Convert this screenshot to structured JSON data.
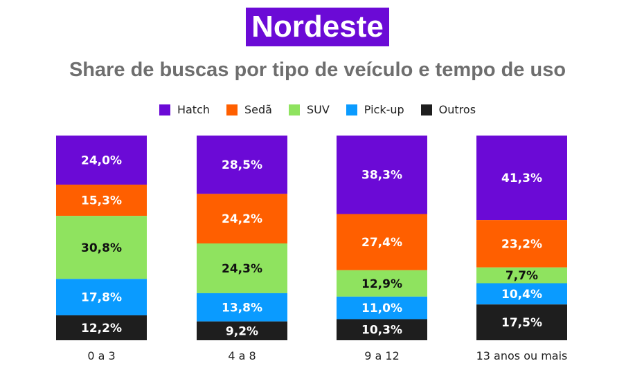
{
  "title": "Nordeste",
  "subtitle": "Share de buscas por tipo de veículo e tempo de uso",
  "chart_data": {
    "type": "bar",
    "stacked": true,
    "categories": [
      "0 a 3",
      "4 a 8",
      "9 a 12",
      "13 anos ou mais"
    ],
    "series": [
      {
        "name": "Hatch",
        "color": "#6B0AD6",
        "label_color": "#ffffff",
        "values": [
          24.0,
          28.5,
          38.3,
          41.3
        ],
        "labels": [
          "24,0%",
          "28,5%",
          "38,3%",
          "41,3%"
        ]
      },
      {
        "name": "Sedã",
        "color": "#FF5F00",
        "label_color": "#ffffff",
        "values": [
          15.3,
          24.2,
          27.4,
          23.2
        ],
        "labels": [
          "15,3%",
          "24,2%",
          "27,4%",
          "23,2%"
        ]
      },
      {
        "name": "SUV",
        "color": "#8FE35F",
        "label_color": "#111111",
        "values": [
          30.8,
          24.3,
          12.9,
          7.7
        ],
        "labels": [
          "30,8%",
          "24,3%",
          "12,9%",
          "7,7%"
        ]
      },
      {
        "name": "Pick-up",
        "color": "#0A9BFF",
        "label_color": "#ffffff",
        "values": [
          17.8,
          13.8,
          11.0,
          10.4
        ],
        "labels": [
          "17,8%",
          "13,8%",
          "11,0%",
          "10,4%"
        ]
      },
      {
        "name": "Outros",
        "color": "#1E1E1E",
        "label_color": "#ffffff",
        "values": [
          12.2,
          9.2,
          10.3,
          17.5
        ],
        "labels": [
          "12,2%",
          "9,2%",
          "10,3%",
          "17,5%"
        ]
      }
    ],
    "ylim": [
      0,
      100
    ],
    "legend_position": "top-center"
  }
}
